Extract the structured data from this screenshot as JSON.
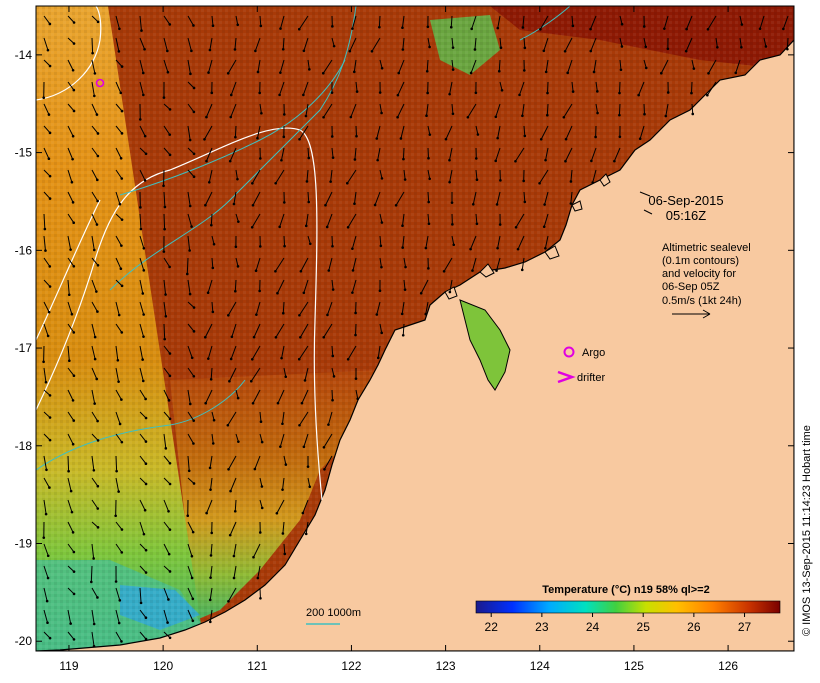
{
  "map": {
    "lat_ticks": [
      "-14",
      "-15",
      "-16",
      "-17",
      "-18",
      "-19",
      "-20"
    ],
    "lon_ticks": [
      "119",
      "120",
      "121",
      "122",
      "123",
      "124",
      "125",
      "126"
    ],
    "lon_range": [
      118.65,
      126.7
    ],
    "lat_range": [
      -13.5,
      -20.1
    ]
  },
  "labels": {
    "date": "06-Sep-2015",
    "time": "05:16Z",
    "alt_line1": "Altimetric sealevel",
    "alt_line2": "(0.1m contours)",
    "alt_line3": "and velocity for",
    "alt_line4": "06-Sep 05Z",
    "alt_line5": "0.5m/s (1kt 24h)",
    "argo": "Argo",
    "drifter": "drifter",
    "depth": "200  1000m",
    "credit": "© IMOS 13-Sep-2015 11:14:23 Hobart time"
  },
  "colorbar": {
    "title": "Temperature (°C) n19 58% ql>=2",
    "ticks": [
      "22",
      "23",
      "24",
      "25",
      "26",
      "27"
    ],
    "range": [
      21.7,
      27.7
    ],
    "colors": [
      "#1a1a8c",
      "#0000ff",
      "#00aaff",
      "#00e0c0",
      "#40d040",
      "#c8e000",
      "#ffc000",
      "#ff7f00",
      "#c83200",
      "#7a0000"
    ]
  },
  "colors": {
    "land": "#f8c9a0",
    "sst_warm": "#a83a08",
    "sst_orange": "#e39010",
    "sst_green": "#7ec43a",
    "contour": "#ffffff",
    "isobath": "#3fc0c0",
    "argo": "#e000e0"
  }
}
